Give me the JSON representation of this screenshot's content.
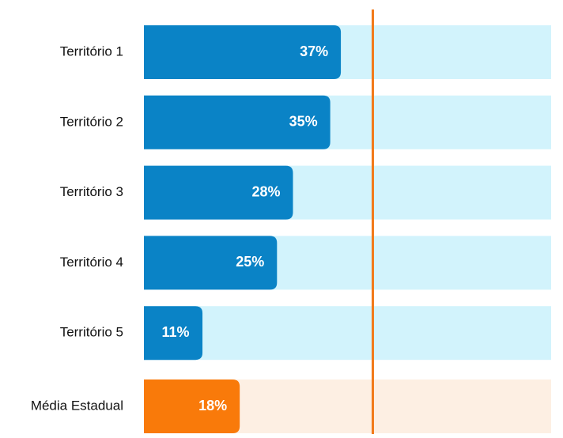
{
  "chart_data": {
    "type": "hbar",
    "categories": [
      "Território 1",
      "Território 2",
      "Território 3",
      "Território 4",
      "Território 5",
      "Média Estadual"
    ],
    "values": [
      37,
      35,
      28,
      25,
      11,
      18
    ],
    "value_labels": [
      "37%",
      "35%",
      "28%",
      "25%",
      "11%",
      "18%"
    ],
    "colors": [
      "#0a83c6",
      "#0a83c6",
      "#0a83c6",
      "#0a83c6",
      "#0a83c6",
      "#f97a0a"
    ],
    "track_colors": [
      "#d2f3fc",
      "#d2f3fc",
      "#d2f3fc",
      "#d2f3fc",
      "#d2f3fc",
      "#fdefe3"
    ],
    "xlim": [
      0,
      76.5
    ],
    "reference": 43,
    "reference_color": "#f27a1a"
  }
}
